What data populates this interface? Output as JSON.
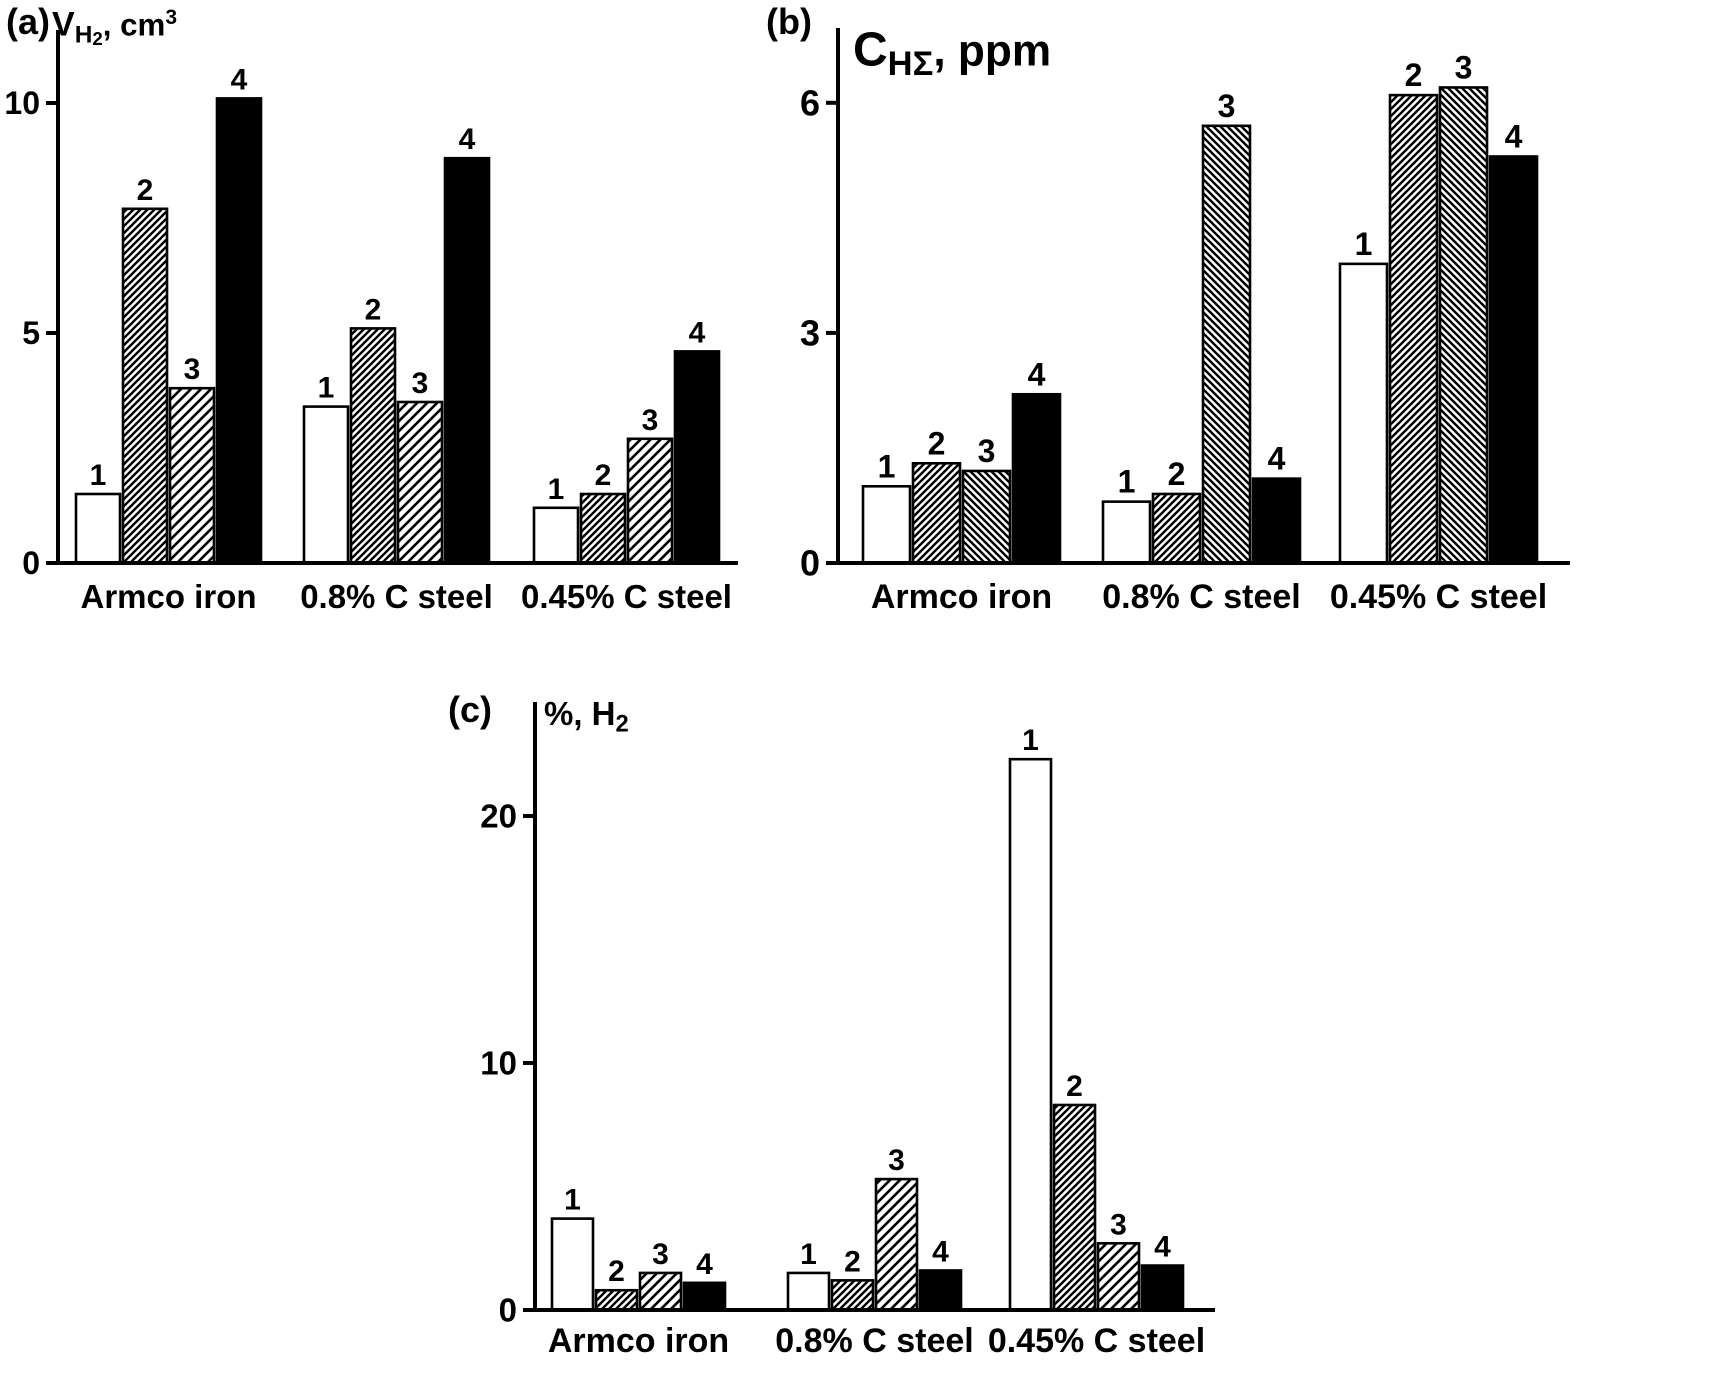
{
  "figure": {
    "panels": [
      {
        "letter": "(a)",
        "ylabel_parts": {
          "main": "V",
          "sub": "H",
          "subsub": "2",
          "rest": ", cm",
          "sup": "3"
        }
      },
      {
        "letter": "(b)",
        "ylabel_parts": {
          "main": "C",
          "sub": "HΣ",
          "subsub": "",
          "rest": ", ppm",
          "sup": ""
        }
      },
      {
        "letter": "(c)",
        "ylabel_parts": {
          "main": "%, H",
          "sub": "2",
          "subsub": "",
          "rest": "",
          "sup": ""
        }
      }
    ]
  },
  "chart_data": [
    {
      "type": "bar",
      "panel": "a",
      "title": "",
      "ylabel": "V_H2, cm^3",
      "categories": [
        "Armco iron",
        "0.8% C steel",
        "0.45% C steel"
      ],
      "series": [
        {
          "name": "1",
          "style": "white",
          "values": [
            1.5,
            3.4,
            1.2
          ]
        },
        {
          "name": "2",
          "style": "hatch-up",
          "values": [
            7.7,
            5.1,
            1.5
          ]
        },
        {
          "name": "3",
          "style": "hatch-up-sparse",
          "values": [
            3.8,
            3.5,
            2.7
          ]
        },
        {
          "name": "4",
          "style": "black",
          "values": [
            10.1,
            8.8,
            4.6
          ]
        }
      ],
      "yticks": [
        0,
        5,
        10
      ],
      "ylim": [
        0,
        11.5
      ],
      "grid": false,
      "legend": "none"
    },
    {
      "type": "bar",
      "panel": "b",
      "title": "",
      "ylabel": "C_HΣ, ppm",
      "categories": [
        "Armco iron",
        "0.8% C steel",
        "0.45% C steel"
      ],
      "series": [
        {
          "name": "1",
          "style": "white",
          "values": [
            1.0,
            0.8,
            3.9
          ]
        },
        {
          "name": "2",
          "style": "hatch-up",
          "values": [
            1.3,
            0.9,
            6.1
          ]
        },
        {
          "name": "3",
          "style": "hatch-down",
          "values": [
            1.2,
            5.7,
            6.2
          ]
        },
        {
          "name": "4",
          "style": "black",
          "values": [
            2.2,
            1.1,
            5.3
          ]
        }
      ],
      "yticks": [
        0,
        3,
        6
      ],
      "ylim": [
        0,
        7
      ],
      "grid": false,
      "legend": "none"
    },
    {
      "type": "bar",
      "panel": "c",
      "title": "",
      "ylabel": "%, H2",
      "categories": [
        "Armco iron",
        "0.8% C steel",
        "0.45% C steel"
      ],
      "series": [
        {
          "name": "1",
          "style": "white",
          "values": [
            3.7,
            1.5,
            22.3
          ]
        },
        {
          "name": "2",
          "style": "hatch-up",
          "values": [
            0.8,
            1.2,
            8.3
          ]
        },
        {
          "name": "3",
          "style": "hatch-up-sparse",
          "values": [
            1.5,
            5.3,
            2.7
          ]
        },
        {
          "name": "4",
          "style": "black",
          "values": [
            1.1,
            1.6,
            1.8
          ]
        }
      ],
      "yticks": [
        0,
        10,
        20
      ],
      "ylim": [
        0,
        24
      ],
      "grid": false,
      "legend": "none"
    }
  ]
}
